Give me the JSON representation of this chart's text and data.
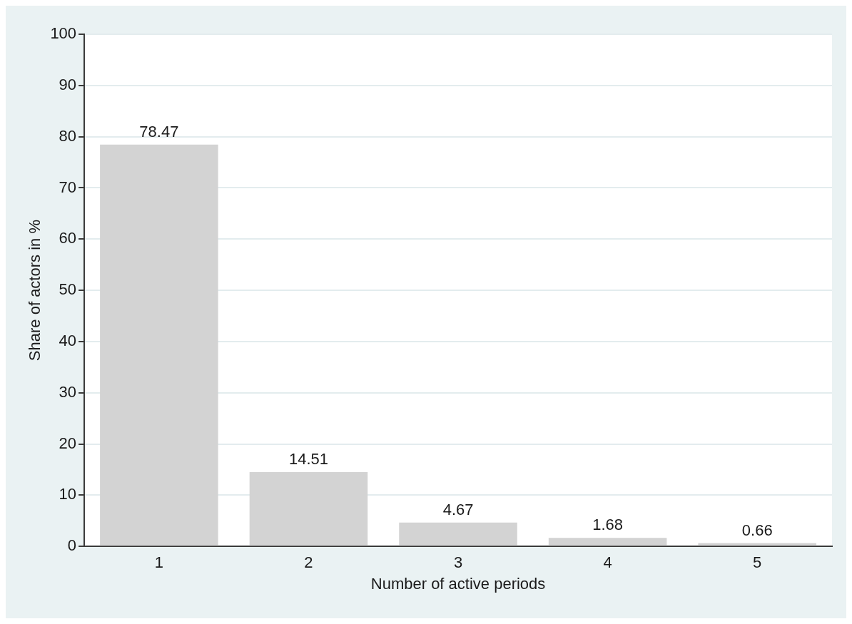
{
  "chart_data": {
    "type": "bar",
    "xlabel": "Number of active periods",
    "ylabel": "Share of actors in %",
    "categories": [
      "1",
      "2",
      "3",
      "4",
      "5"
    ],
    "values": [
      78.47,
      14.51,
      4.67,
      1.68,
      0.66
    ],
    "color": "#d3d3d3",
    "ylim": [
      0,
      100
    ],
    "yticks": [
      0,
      10,
      20,
      30,
      40,
      50,
      60,
      70,
      80,
      90,
      100
    ],
    "grid": "y",
    "legend": false,
    "data_labels": true
  }
}
